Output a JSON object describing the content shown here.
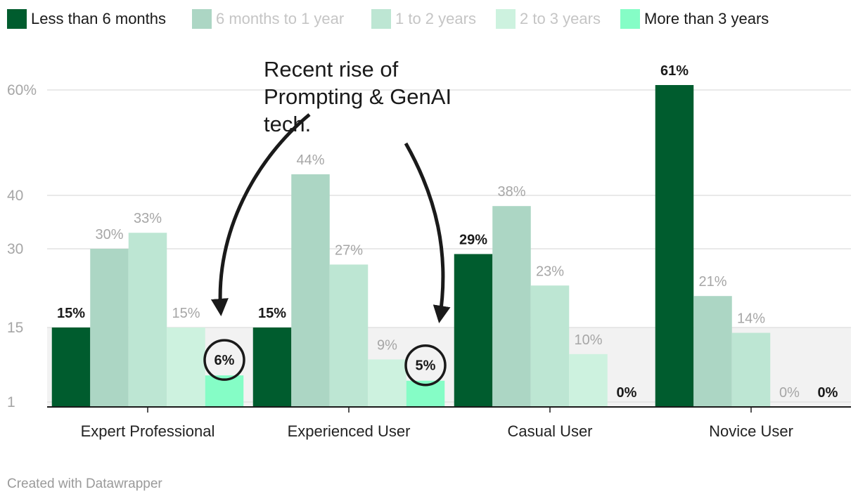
{
  "chart_data": {
    "type": "bar",
    "categories": [
      "Expert Professional",
      "Experienced User",
      "Casual User",
      "Novice User"
    ],
    "series": [
      {
        "name": "Less than 6 months",
        "color": "#005c2e",
        "values": [
          15,
          15,
          29,
          61
        ],
        "labels": [
          "15%",
          "15%",
          "29%",
          "61%"
        ],
        "label_style": "strong"
      },
      {
        "name": "6 months to 1 year",
        "color": "#acd6c4",
        "values": [
          30,
          44,
          38,
          21
        ],
        "labels": [
          "30%",
          "44%",
          "38%",
          "21%"
        ],
        "label_style": "muted"
      },
      {
        "name": "1 to 2 years",
        "color": "#bde6d3",
        "values": [
          33,
          27,
          23,
          14
        ],
        "labels": [
          "33%",
          "27%",
          "23%",
          "14%"
        ],
        "label_style": "muted"
      },
      {
        "name": "2 to 3 years",
        "color": "#cdf2df",
        "values": [
          15,
          9,
          10,
          0
        ],
        "labels": [
          "15%",
          "9%",
          "10%",
          "0%"
        ],
        "label_style": "muted"
      },
      {
        "name": "More than 3 years",
        "color": "#85fdc6",
        "values": [
          6,
          5,
          0,
          0
        ],
        "labels": [
          "6%",
          "5%",
          "0%",
          "0%"
        ],
        "label_style": "strong"
      }
    ],
    "y_ticks": [
      {
        "value": 1,
        "label": "1"
      },
      {
        "value": 15,
        "label": "15"
      },
      {
        "value": 30,
        "label": "30"
      },
      {
        "value": 40,
        "label": "40"
      },
      {
        "value": 60,
        "label": "60%"
      }
    ],
    "ylim": [
      0,
      61
    ],
    "highlight_range": [
      0,
      15
    ],
    "legend_position": "top-left",
    "annotation": {
      "lines": [
        "Recent rise of",
        "Prompting & GenAI",
        "tech."
      ],
      "circled_values": [
        "6%",
        "5%"
      ]
    }
  },
  "footer": {
    "credit": "Created with Datawrapper"
  }
}
